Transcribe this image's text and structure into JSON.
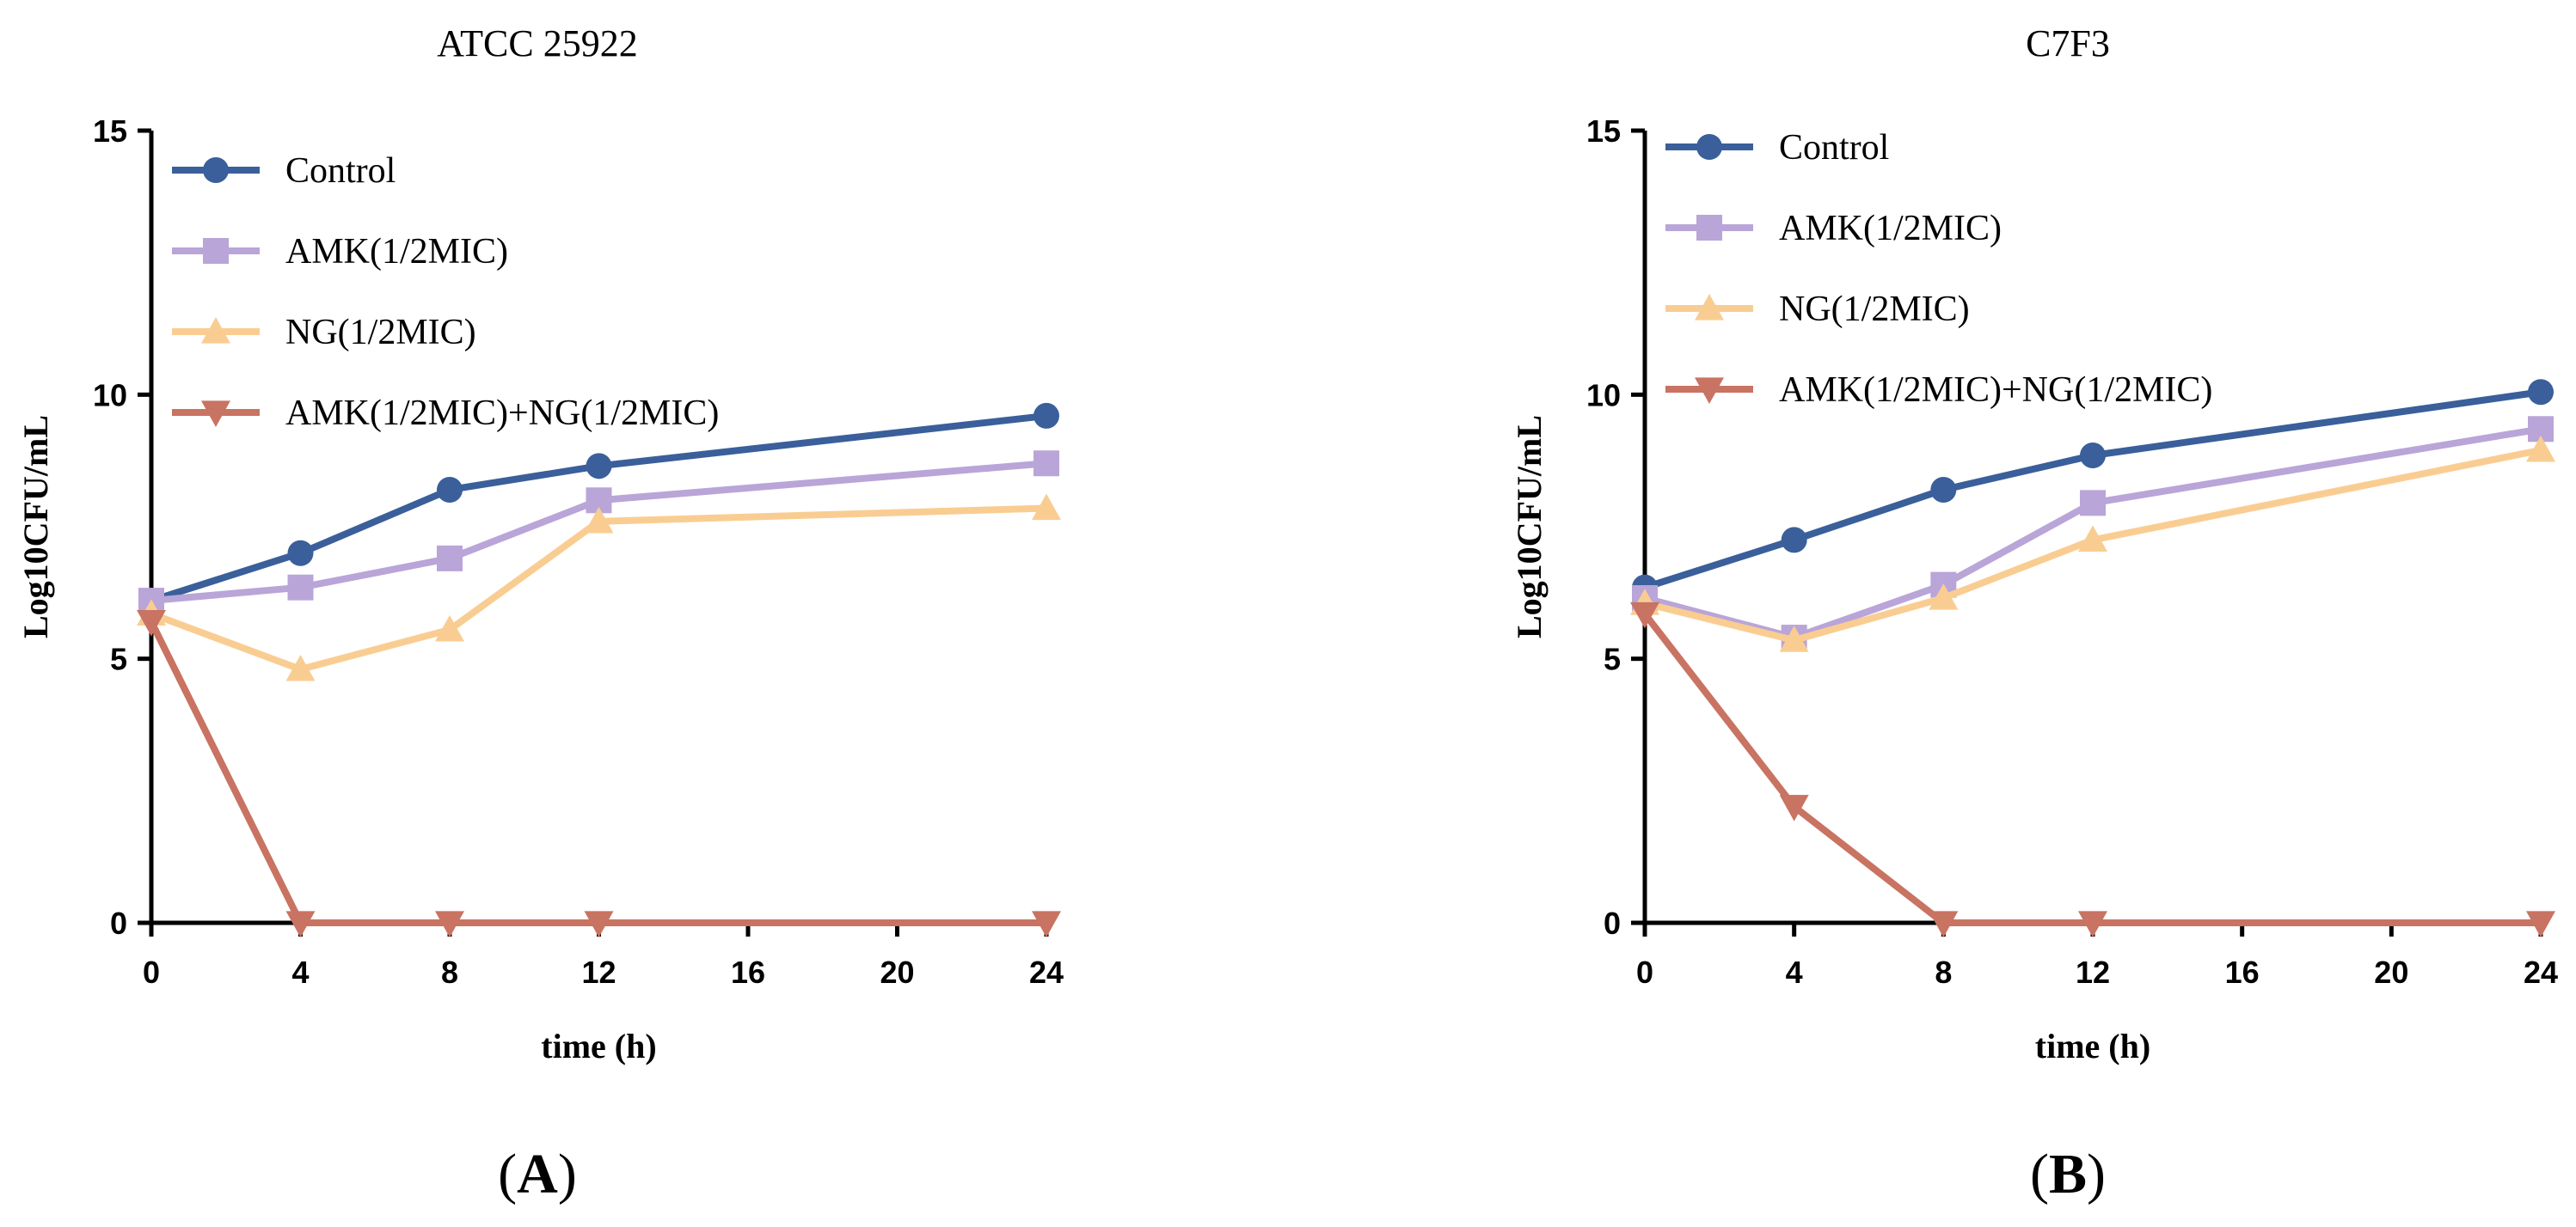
{
  "chart_data": [
    {
      "type": "line",
      "title": "ATCC 25922",
      "panel_label": "A",
      "xlabel": "time (h)",
      "ylabel": "Log10CFU/mL",
      "xlim": [
        0,
        24
      ],
      "ylim": [
        0,
        15
      ],
      "xticks": [
        0,
        4,
        8,
        12,
        16,
        20,
        24
      ],
      "yticks": [
        0,
        5,
        10,
        15
      ],
      "x": [
        0,
        4,
        8,
        12,
        24
      ],
      "legend_position": "top-left",
      "series": [
        {
          "name": "Control",
          "color": "#3a5f9a",
          "marker": "circle",
          "values": [
            6.1,
            7.0,
            8.2,
            8.65,
            9.6
          ]
        },
        {
          "name": "AMK(1/2MIC)",
          "color": "#b9a5d8",
          "marker": "square",
          "values": [
            6.1,
            6.35,
            6.9,
            8.0,
            8.7
          ]
        },
        {
          "name": "NG(1/2MIC)",
          "color": "#f9cd92",
          "marker": "triangle-up",
          "values": [
            5.85,
            4.8,
            5.55,
            7.6,
            7.85
          ]
        },
        {
          "name": "AMK(1/2MIC)+NG(1/2MIC)",
          "color": "#c97362",
          "marker": "triangle-down",
          "values": [
            5.7,
            0,
            0,
            0,
            0
          ]
        }
      ]
    },
    {
      "type": "line",
      "title": "C7F3",
      "panel_label": "B",
      "xlabel": "time (h)",
      "ylabel": "Log10CFU/mL",
      "xlim": [
        0,
        24
      ],
      "ylim": [
        0,
        15
      ],
      "xticks": [
        0,
        4,
        8,
        12,
        16,
        20,
        24
      ],
      "yticks": [
        0,
        5,
        10,
        15
      ],
      "x": [
        0,
        4,
        8,
        12,
        24
      ],
      "legend_position": "top-left",
      "series": [
        {
          "name": "Control",
          "color": "#3a5f9a",
          "marker": "circle",
          "values": [
            6.35,
            7.25,
            8.2,
            8.85,
            10.05
          ]
        },
        {
          "name": "AMK(1/2MIC)",
          "color": "#b9a5d8",
          "marker": "square",
          "values": [
            6.15,
            5.4,
            6.4,
            7.95,
            9.35
          ]
        },
        {
          "name": "NG(1/2MIC)",
          "color": "#f9cd92",
          "marker": "triangle-up",
          "values": [
            6.05,
            5.35,
            6.15,
            7.25,
            8.95
          ]
        },
        {
          "name": "AMK(1/2MIC)+NG(1/2MIC)",
          "color": "#c97362",
          "marker": "triangle-down",
          "values": [
            5.85,
            2.2,
            0,
            0,
            0
          ]
        }
      ]
    }
  ]
}
